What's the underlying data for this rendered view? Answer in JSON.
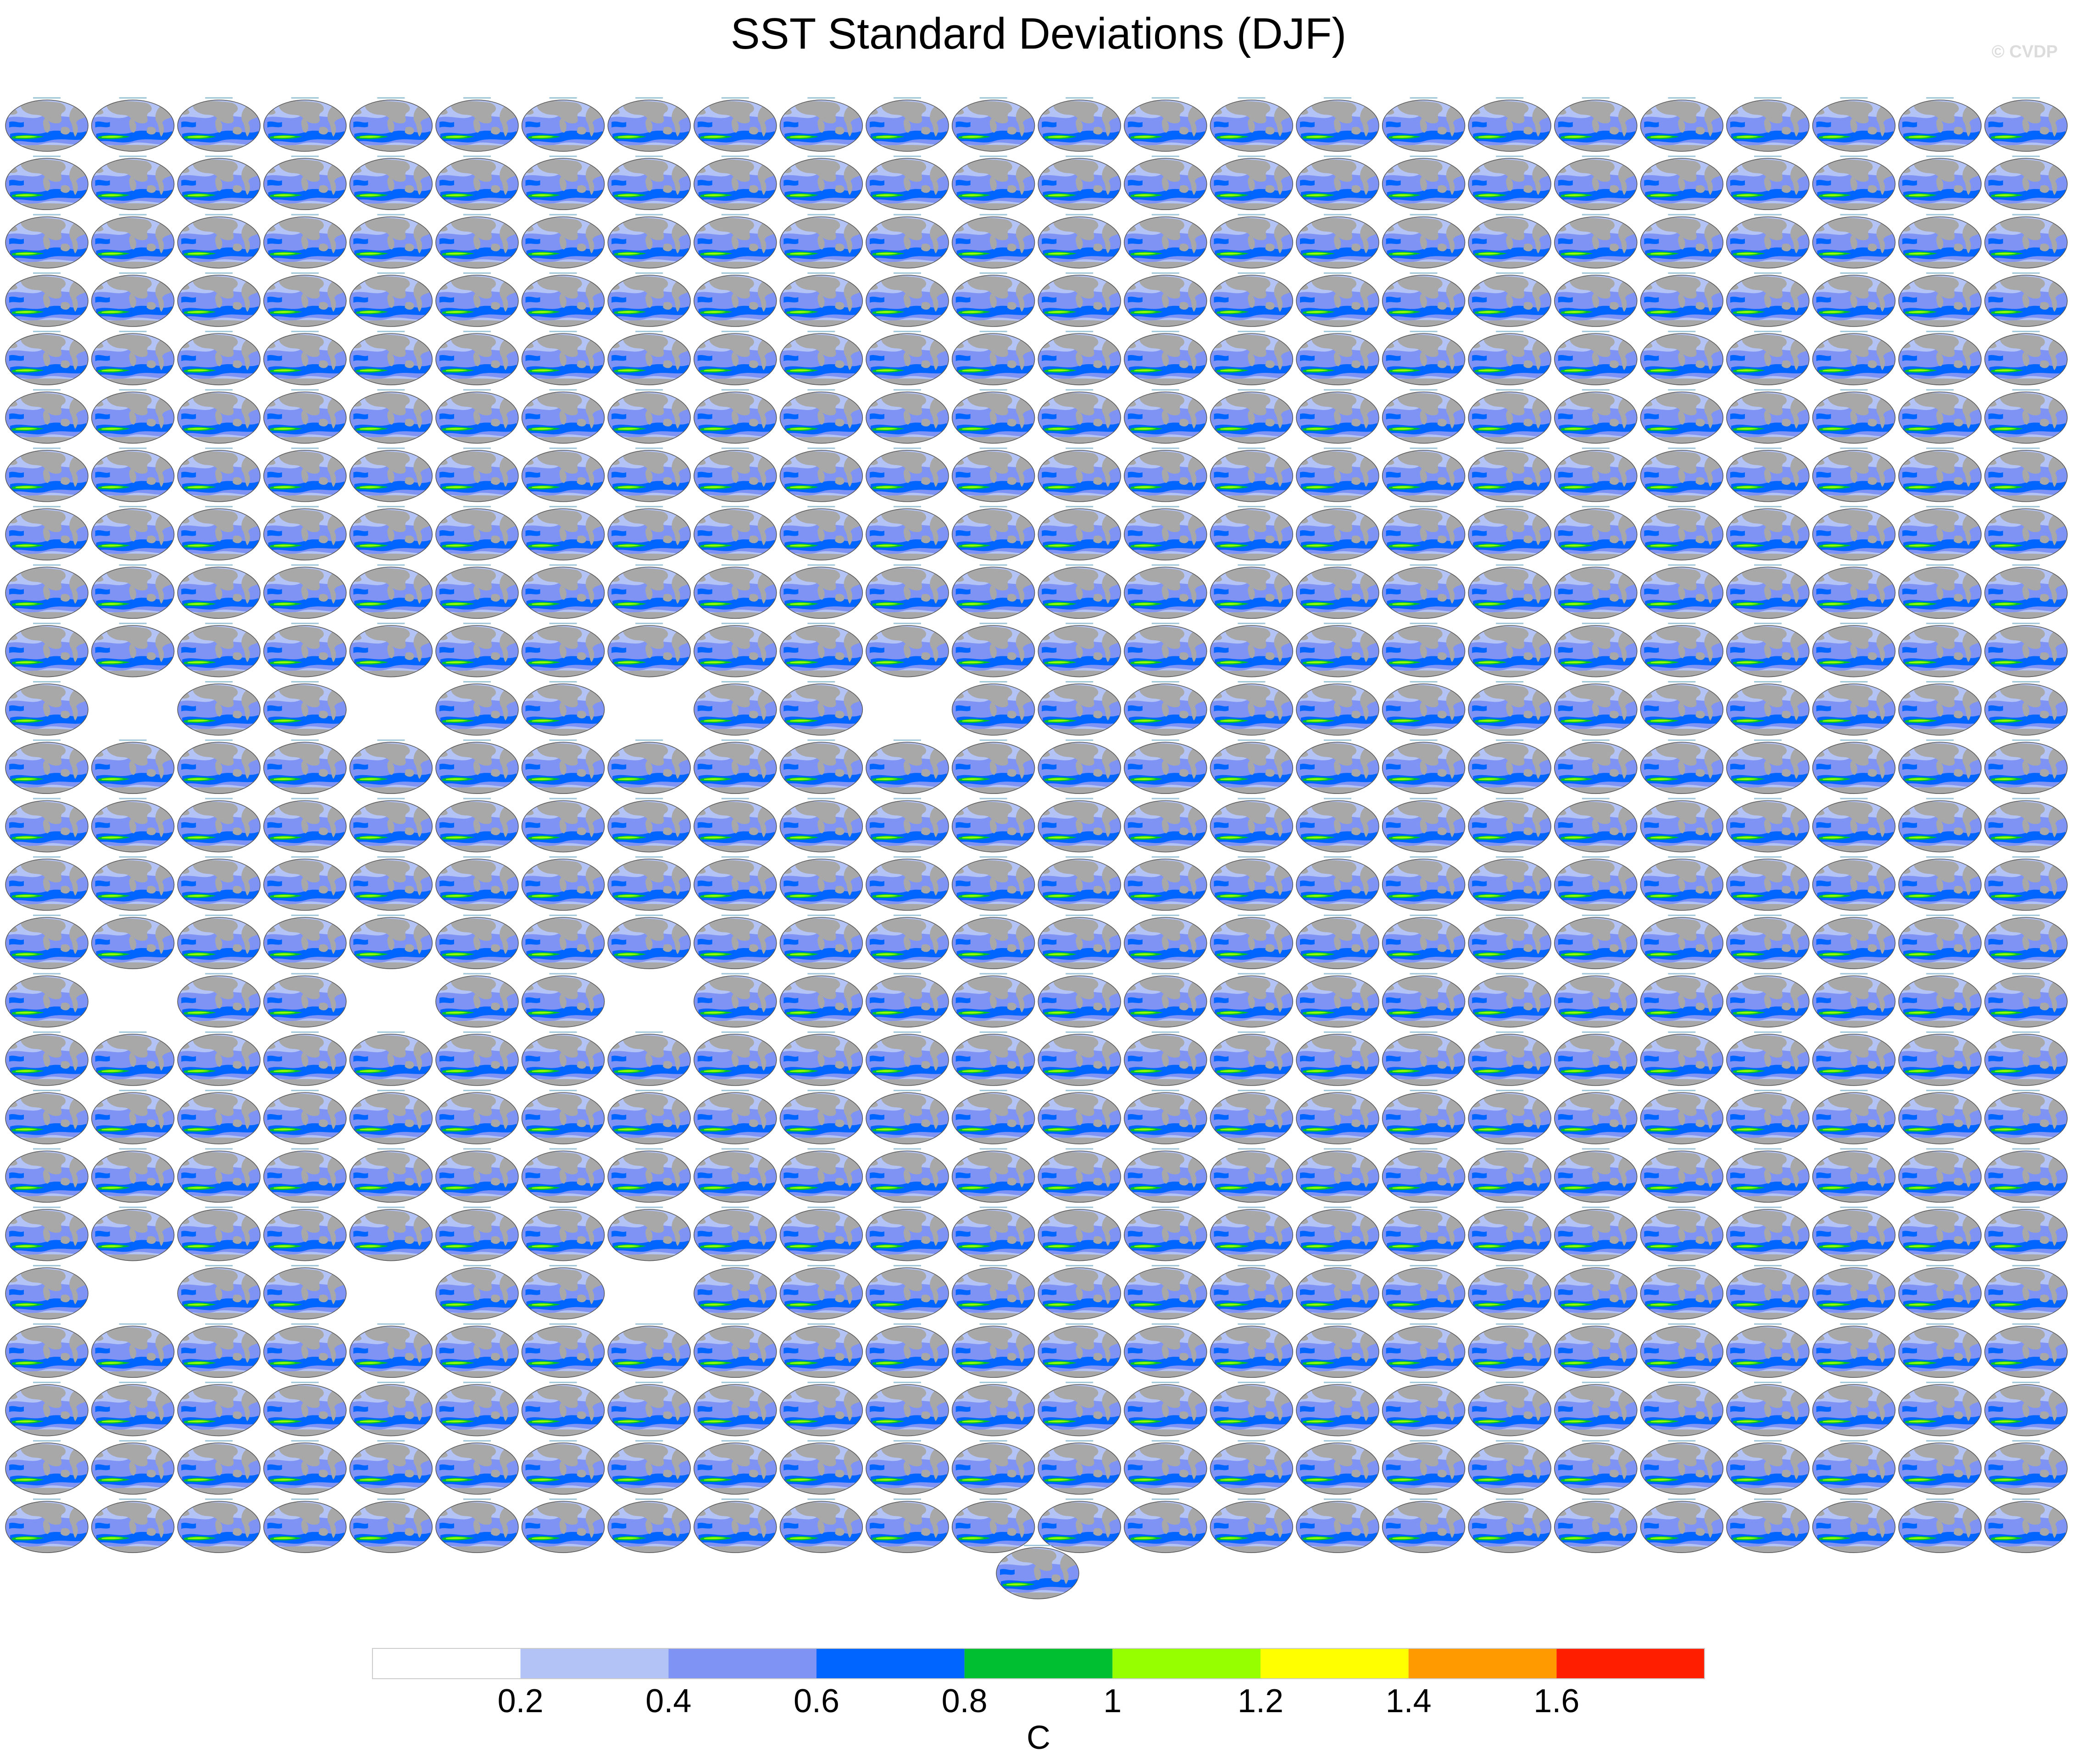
{
  "title": "SST Standard Deviations (DJF)",
  "watermark": "© CVDP",
  "chart_data": {
    "type": "heatmap",
    "title": "SST Standard Deviations (DJF)",
    "description_of_layout": "",
    "panel_grid": {
      "rows": 25,
      "cols": 24,
      "extra_panels": 1
    },
    "empty_panel_slots": [
      [
        10,
        1
      ],
      [
        10,
        4
      ],
      [
        10,
        7
      ],
      [
        10,
        10
      ],
      [
        15,
        1
      ],
      [
        15,
        4
      ],
      [
        15,
        7
      ],
      [
        20,
        1
      ],
      [
        20,
        4
      ],
      [
        20,
        7
      ]
    ],
    "colorbar": {
      "units": "C",
      "levels": [
        0.2,
        0.4,
        0.6,
        0.8,
        1,
        1.2,
        1.4,
        1.6
      ],
      "tick_labels": [
        "0.2",
        "0.4",
        "0.6",
        "0.8",
        "1",
        "1.2",
        "1.4",
        "1.6"
      ],
      "colors": [
        "#ffffff",
        "#b4c3f5",
        "#7e93f4",
        "#0064ff",
        "#00c032",
        "#96ff00",
        "#ffff00",
        "#ff9b00",
        "#ff1e00"
      ]
    },
    "map_colors": {
      "land": "#a8a8a8",
      "ocean_low": "#b4c3f5",
      "ocean_mid": "#7e93f4",
      "ocean_high": "#0064ff",
      "enso": "#00c032",
      "enso_peak": "#96ff00"
    }
  }
}
